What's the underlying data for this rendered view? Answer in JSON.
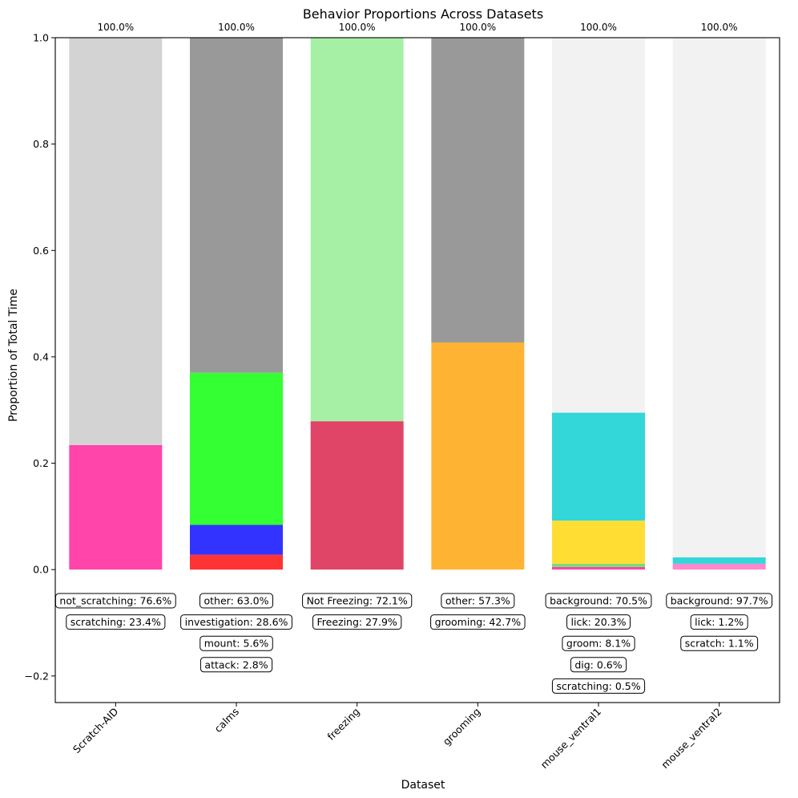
{
  "chart_data": {
    "type": "bar",
    "stacked": true,
    "title": "Behavior Proportions Across Datasets",
    "xlabel": "Dataset",
    "ylabel": "Proportion of Total Time",
    "ylim": [
      -0.25,
      1.0
    ],
    "yticks": [
      -0.2,
      0.0,
      0.2,
      0.4,
      0.6,
      0.8,
      1.0
    ],
    "ytick_labels": [
      "−0.2",
      "0.0",
      "0.2",
      "0.4",
      "0.6",
      "0.8",
      "1.0"
    ],
    "grid": false,
    "categories": [
      "Scratch-AID",
      "calms",
      "freezing",
      "grooming",
      "mouse_ventral1",
      "mouse_ventral2"
    ],
    "totals": [
      "100.0%",
      "100.0%",
      "100.0%",
      "100.0%",
      "100.0%",
      "100.0%"
    ],
    "stacks": [
      {
        "dataset": "Scratch-AID",
        "segments": [
          {
            "name": "scratching",
            "value": 0.234,
            "color": "#ff44aa"
          },
          {
            "name": "not_scratching",
            "value": 0.766,
            "color": "#d3d3d3"
          }
        ],
        "labels": [
          "not_scratching: 76.6%",
          "scratching: 23.4%"
        ]
      },
      {
        "dataset": "calms",
        "segments": [
          {
            "name": "attack",
            "value": 0.028,
            "color": "#ff3333"
          },
          {
            "name": "mount",
            "value": 0.056,
            "color": "#3333ff"
          },
          {
            "name": "investigation",
            "value": 0.286,
            "color": "#33ff33"
          },
          {
            "name": "other",
            "value": 0.63,
            "color": "#999999"
          }
        ],
        "labels": [
          "other: 63.0%",
          "investigation: 28.6%",
          "mount: 5.6%",
          "attack: 2.8%"
        ]
      },
      {
        "dataset": "freezing",
        "segments": [
          {
            "name": "Freezing",
            "value": 0.279,
            "color": "#e04466"
          },
          {
            "name": "Not Freezing",
            "value": 0.721,
            "color": "#a6f0a6"
          }
        ],
        "labels": [
          "Not Freezing: 72.1%",
          "Freezing: 27.9%"
        ]
      },
      {
        "dataset": "grooming",
        "segments": [
          {
            "name": "grooming",
            "value": 0.427,
            "color": "#ffb333"
          },
          {
            "name": "other",
            "value": 0.573,
            "color": "#999999"
          }
        ],
        "labels": [
          "other: 57.3%",
          "grooming: 42.7%"
        ]
      },
      {
        "dataset": "mouse_ventral1",
        "segments": [
          {
            "name": "scratching",
            "value": 0.005,
            "color": "#ff44aa"
          },
          {
            "name": "dig",
            "value": 0.006,
            "color": "#77dd77"
          },
          {
            "name": "groom",
            "value": 0.081,
            "color": "#ffdd33"
          },
          {
            "name": "lick",
            "value": 0.203,
            "color": "#33d6d9"
          },
          {
            "name": "background",
            "value": 0.705,
            "color": "#f2f2f2"
          }
        ],
        "labels": [
          "background: 70.5%",
          "lick: 20.3%",
          "groom: 8.1%",
          "dig: 0.6%",
          "scratching: 0.5%"
        ]
      },
      {
        "dataset": "mouse_ventral2",
        "segments": [
          {
            "name": "scratch",
            "value": 0.011,
            "color": "#ff88cc"
          },
          {
            "name": "lick",
            "value": 0.012,
            "color": "#33d6d9"
          },
          {
            "name": "background",
            "value": 0.977,
            "color": "#f2f2f2"
          }
        ],
        "labels": [
          "background: 97.7%",
          "lick: 1.2%",
          "scratch: 1.1%"
        ]
      }
    ]
  }
}
